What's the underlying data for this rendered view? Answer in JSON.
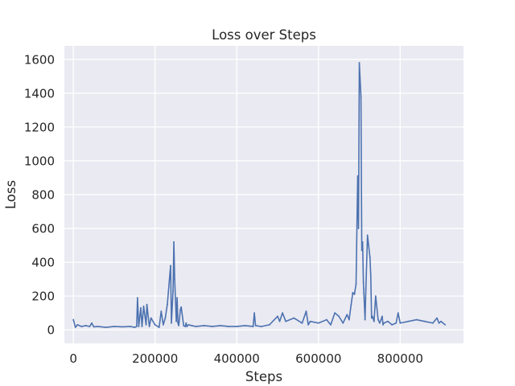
{
  "chart_data": {
    "type": "line",
    "title": "Loss over Steps",
    "xlabel": "Steps",
    "ylabel": "Loss",
    "xlim": [
      -22000,
      955000
    ],
    "ylim": [
      -80,
      1680
    ],
    "xticks": [
      0,
      200000,
      400000,
      600000,
      800000
    ],
    "yticks": [
      0,
      200,
      400,
      600,
      800,
      1000,
      1200,
      1400,
      1600
    ],
    "grid": true,
    "line_color": "#4c72b0",
    "plot_background": "#eaeaf2",
    "series": [
      {
        "x": [
          0,
          5000,
          10000,
          20000,
          30000,
          40000,
          45000,
          50000,
          60000,
          80000,
          100000,
          120000,
          140000,
          150000,
          155000,
          157000,
          160000,
          165000,
          168000,
          172000,
          178000,
          180000,
          186000,
          190000,
          200000,
          210000,
          215000,
          220000,
          225000,
          230000,
          238000,
          240000,
          244000,
          246000,
          248000,
          252000,
          254000,
          256000,
          258000,
          262000,
          264000,
          270000,
          274000,
          276000,
          278000,
          282000,
          290000,
          300000,
          320000,
          340000,
          360000,
          380000,
          400000,
          420000,
          440000,
          443000,
          446000,
          460000,
          480000,
          500000,
          505000,
          512000,
          520000,
          540000,
          560000,
          570000,
          575000,
          580000,
          600000,
          620000,
          630000,
          640000,
          650000,
          660000,
          670000,
          675000,
          680000,
          684000,
          688000,
          692000,
          696000,
          698000,
          700000,
          704000,
          706000,
          708000,
          710000,
          714000,
          716000,
          720000,
          726000,
          728000,
          730000,
          732000,
          736000,
          740000,
          746000,
          750000,
          756000,
          758000,
          760000,
          770000,
          780000,
          790000,
          795000,
          800000,
          820000,
          840000,
          860000,
          880000,
          890000,
          895000,
          900000,
          910000
        ],
        "values": [
          60,
          15,
          30,
          20,
          25,
          20,
          40,
          18,
          20,
          15,
          20,
          18,
          20,
          15,
          20,
          190,
          20,
          130,
          20,
          140,
          30,
          150,
          20,
          70,
          30,
          15,
          110,
          30,
          70,
          150,
          380,
          40,
          230,
          520,
          300,
          50,
          190,
          40,
          25,
          120,
          135,
          25,
          20,
          40,
          20,
          30,
          25,
          20,
          25,
          20,
          25,
          20,
          20,
          25,
          20,
          100,
          25,
          20,
          30,
          80,
          50,
          100,
          50,
          70,
          40,
          110,
          30,
          50,
          40,
          60,
          30,
          100,
          80,
          40,
          90,
          60,
          150,
          220,
          210,
          270,
          910,
          600,
          1580,
          1380,
          470,
          520,
          280,
          60,
          240,
          560,
          430,
          320,
          70,
          80,
          50,
          200,
          60,
          40,
          80,
          30,
          40,
          50,
          30,
          40,
          100,
          40,
          50,
          60,
          50,
          40,
          70,
          40,
          50,
          30
        ]
      }
    ]
  }
}
